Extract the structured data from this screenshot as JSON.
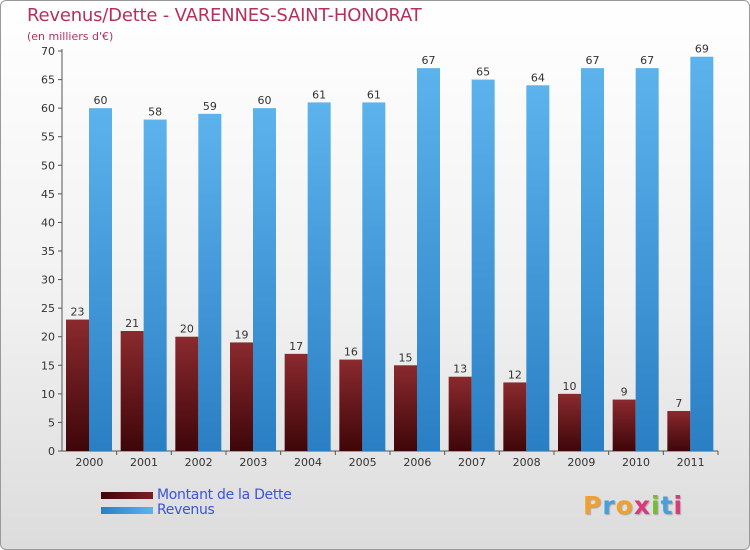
{
  "chart_data": {
    "type": "bar",
    "title": "Revenus/Dette - VARENNES-SAINT-HONORAT",
    "subtitle": "(en milliers d'€)",
    "categories": [
      "2000",
      "2001",
      "2002",
      "2003",
      "2004",
      "2005",
      "2006",
      "2007",
      "2008",
      "2009",
      "2010",
      "2011"
    ],
    "series": [
      {
        "name": "Montant de la Dette",
        "values": [
          23,
          21,
          20,
          19,
          17,
          16,
          15,
          13,
          12,
          10,
          9,
          7
        ],
        "color": "#6b0f14"
      },
      {
        "name": "Revenus",
        "values": [
          60,
          58,
          59,
          60,
          61,
          61,
          67,
          65,
          64,
          67,
          67,
          69
        ],
        "color": "#4ea3e0"
      }
    ],
    "ylim": [
      0,
      70
    ],
    "yticks": [
      0,
      5,
      10,
      15,
      20,
      25,
      30,
      35,
      40,
      45,
      50,
      55,
      60,
      65,
      70
    ],
    "grid": false,
    "legend_position": "bottom-left"
  },
  "logo": {
    "letters": [
      "P",
      "r",
      "o",
      "x",
      "i",
      "t",
      "i"
    ],
    "colors": [
      "#f0a030",
      "#4a9fd8",
      "#f0a030",
      "#d83a7a",
      "#7ab836",
      "#4a9fd8",
      "#d83a7a"
    ]
  }
}
